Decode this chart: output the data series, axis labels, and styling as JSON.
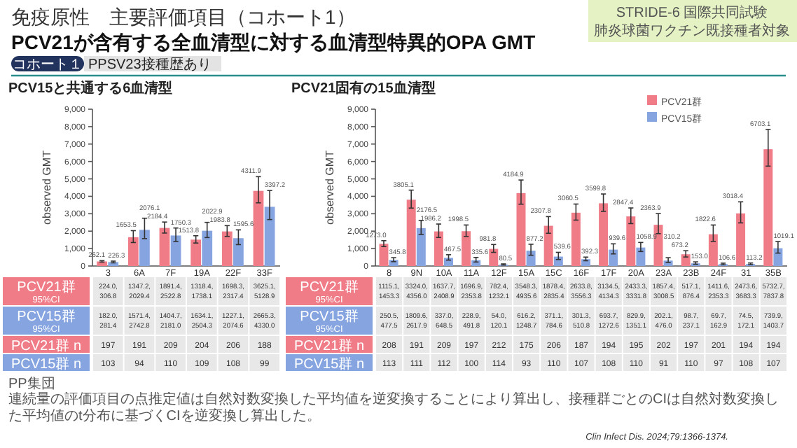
{
  "chart_data": [
    {
      "type": "bar",
      "title": "PCV15と共通する6血清型",
      "ylabel": "observed GMT",
      "categories": [
        "3",
        "6A",
        "7F",
        "19A",
        "22F",
        "33F"
      ],
      "ylim": [
        0,
        9000
      ],
      "yticks": [
        0,
        {
          "value": 1000,
          "label": "1,000"
        },
        {
          "value": 2000,
          "label": "2,000"
        },
        {
          "value": 3000,
          "label": "3,000"
        },
        {
          "value": 4000,
          "label": "4,000"
        },
        {
          "value": 5000,
          "label": "5,000"
        },
        {
          "value": 6000,
          "label": "6,000"
        },
        {
          "value": 7000,
          "label": "7,000"
        },
        {
          "value": 8000,
          "label": "8,000"
        },
        {
          "value": 9000,
          "label": "9,000"
        }
      ],
      "legend": false,
      "series": [
        {
          "name": "PCV21群",
          "color": "#f07c88",
          "values": [
            262.1,
            1653.5,
            2184.4,
            1513.8,
            1983.8,
            4311.9
          ],
          "value_labels": [
            "262.1",
            "1653.5",
            "2184.4",
            "1513.8",
            "1983.8",
            "4311.9"
          ],
          "errors": [
            [
              224.0,
              306.8
            ],
            [
              1347.2,
              2029.4
            ],
            [
              1891.4,
              2522.8
            ],
            [
              1318.4,
              1738.1
            ],
            [
              1698.3,
              2317.4
            ],
            [
              3625.1,
              5128.9
            ]
          ]
        },
        {
          "name": "PCV15群",
          "color": "#86a4e0",
          "values": [
            226.3,
            2076.1,
            1750.3,
            2022.9,
            1595.6,
            3397.2
          ],
          "value_labels": [
            "226.3",
            "2076.1",
            "1750.3",
            "2022.9",
            "1595.6",
            "3397.2"
          ],
          "errors": [
            [
              182.0,
              281.4
            ],
            [
              1571.4,
              2742.8
            ],
            [
              1404.7,
              2181.0
            ],
            [
              1634.1,
              2504.3
            ],
            [
              1227.1,
              2074.6
            ],
            [
              2665.3,
              4330.0
            ]
          ]
        }
      ],
      "annotations": [
        "95%CI",
        "n",
        "免疫原性　主要評価項目（コホート1）",
        "PCV21が含有する全血清型に対する血清型特異的OPA GMT",
        "STRIDE-6 国際共同試験",
        "肺炎球菌ワクチン既接種者対象",
        "コホート１",
        "PPSV23接種歴あり",
        "PP集団",
        "連続量の評価項目の点推定値は自然対数変換した平均値を逆変換することにより算出し、接種群ごとのCIは自然対数変換した平均値のt分布に基づくCIを逆変換し算出した。",
        "Clin Infect Dis. 2024;79:1366-1374.",
        "224.0,",
        "306.8",
        "1347.2,",
        "2029.4",
        "1891.4,",
        "2522.8",
        "1318.4,",
        "1738.1",
        "1698.3,",
        "2317.4",
        "3625.1,",
        "5128.9",
        "182.0,",
        "281.4",
        "1571.4,",
        "2742.8",
        "1404.7,",
        "2181.0",
        "1634.1,",
        "2504.3",
        "1227.1,",
        "2074.6",
        "2665.3,",
        "4330.0",
        "197",
        "191",
        "209",
        "204",
        "206",
        "188",
        "103",
        "94",
        "110",
        "109",
        "108",
        "99"
      ]
    },
    {
      "type": "bar",
      "title": "PCV21固有の15血清型",
      "ylabel": "observed GMT",
      "categories": [
        "8",
        "9N",
        "10A",
        "11A",
        "12F",
        "15A",
        "15C",
        "16F",
        "17F",
        "20A",
        "23A",
        "23B",
        "24F",
        "31",
        "35B"
      ],
      "ylim": [
        0,
        9000
      ],
      "yticks": [
        0,
        {
          "value": 1000,
          "label": "1,000"
        },
        {
          "value": 2000,
          "label": "2,000"
        },
        {
          "value": 3000,
          "label": "3,000"
        },
        {
          "value": 4000,
          "label": "4,000"
        },
        {
          "value": 5000,
          "label": "5,000"
        },
        {
          "value": 6000,
          "label": "6,000"
        },
        {
          "value": 7000,
          "label": "7,000"
        },
        {
          "value": 8000,
          "label": "8,000"
        },
        {
          "value": 9000,
          "label": "9,000"
        }
      ],
      "legend": "top right",
      "series": [
        {
          "name": "PCV21群",
          "color": "#f07c88",
          "values": [
            1273.0,
            3805.1,
            1986.2,
            1998.5,
            981.8,
            4184.9,
            2307.8,
            3060.5,
            3599.8,
            2847.4,
            2363.9,
            673.2,
            1822.6,
            3018.4,
            6703.1
          ],
          "value_labels": [
            "1273.0",
            "3805.1",
            "1986.2",
            "1998.5",
            "981.8",
            "4184.9",
            "2307.8",
            "3060.5",
            "3599.8",
            "2847.4",
            "2363.9",
            "673.2",
            "1822.6",
            "3018.4",
            "6703.1"
          ],
          "errors": [
            [
              1115.1,
              1453.3
            ],
            [
              3324.0,
              4356.0
            ],
            [
              1637.7,
              2408.9
            ],
            [
              1696.9,
              2353.8
            ],
            [
              782.4,
              1232.1
            ],
            [
              3548.3,
              4935.6
            ],
            [
              1878.4,
              2835.4
            ],
            [
              2633.8,
              3556.3
            ],
            [
              3134.5,
              4134.3
            ],
            [
              2433.3,
              3331.8
            ],
            [
              1857.4,
              3008.5
            ],
            [
              517.1,
              876.4
            ],
            [
              1411.6,
              2353.3
            ],
            [
              2473.6,
              3683.3
            ],
            [
              5732.7,
              7837.8
            ]
          ]
        },
        {
          "name": "PCV15群",
          "color": "#86a4e0",
          "values": [
            345.8,
            2176.5,
            467.5,
            335.6,
            80.5,
            877.2,
            539.6,
            392.3,
            939.6,
            1058.9,
            310.2,
            153.0,
            106.6,
            113.2,
            1019.1
          ],
          "value_labels": [
            "345.8",
            "2176.5",
            "467.5",
            "335.6",
            "80.5",
            "877.2",
            "539.6",
            "392.3",
            "939.6",
            "1058.9",
            "310.2",
            "153.0",
            "106.6",
            "113.2",
            "1019.1"
          ],
          "errors": [
            [
              250.5,
              477.5
            ],
            [
              1809.6,
              2617.9
            ],
            [
              337.0,
              648.5
            ],
            [
              228.9,
              491.8
            ],
            [
              54.0,
              120.1
            ],
            [
              616.2,
              1248.7
            ],
            [
              371.1,
              784.6
            ],
            [
              301.3,
              510.8
            ],
            [
              693.7,
              1272.6
            ],
            [
              829.9,
              1351.1
            ],
            [
              202.1,
              476.0
            ],
            [
              98.7,
              237.1
            ],
            [
              69.7,
              162.9
            ],
            [
              74.5,
              172.1
            ],
            [
              739.9,
              1403.7
            ]
          ]
        }
      ],
      "annotations": [
        "95%CI",
        "n",
        "1115.1,",
        "1453.3",
        "3324.0,",
        "4356.0",
        "1637.7,",
        "2408.9",
        "1696.9,",
        "2353.8",
        "782.4,",
        "1232.1",
        "3548.3,",
        "4935.6",
        "1878.4,",
        "2835.4",
        "2633.8,",
        "3556.3",
        "3134.5,",
        "4134.3",
        "2433.3,",
        "3331.8",
        "1857.4,",
        "3008.5",
        "517.1,",
        "876.4",
        "1411.6,",
        "2353.3",
        "2473.6,",
        "3683.3",
        "5732.7,",
        "7837.8",
        "250.5,",
        "477.5",
        "1809.6,",
        "2617.9",
        "337.0,",
        "648.5",
        "228.9,",
        "491.8",
        "54.0,",
        "120.1",
        "616.2,",
        "1248.7",
        "371.1,",
        "784.6",
        "301.3,",
        "510.8",
        "693.7,",
        "1272.6",
        "829.9,",
        "1351.1",
        "202.1,",
        "476.0",
        "98.7,",
        "237.1",
        "69.7,",
        "162.9",
        "74.5,",
        "172.1",
        "739.9,",
        "1403.7",
        "208",
        "191",
        "209",
        "197",
        "212",
        "175",
        "206",
        "187",
        "194",
        "195",
        "202",
        "197",
        "201",
        "194",
        "194",
        "113",
        "111",
        "112",
        "100",
        "114",
        "93",
        "110",
        "107",
        "108",
        "110",
        "91",
        "110",
        "97",
        "108",
        "107"
      ]
    }
  ]
}
